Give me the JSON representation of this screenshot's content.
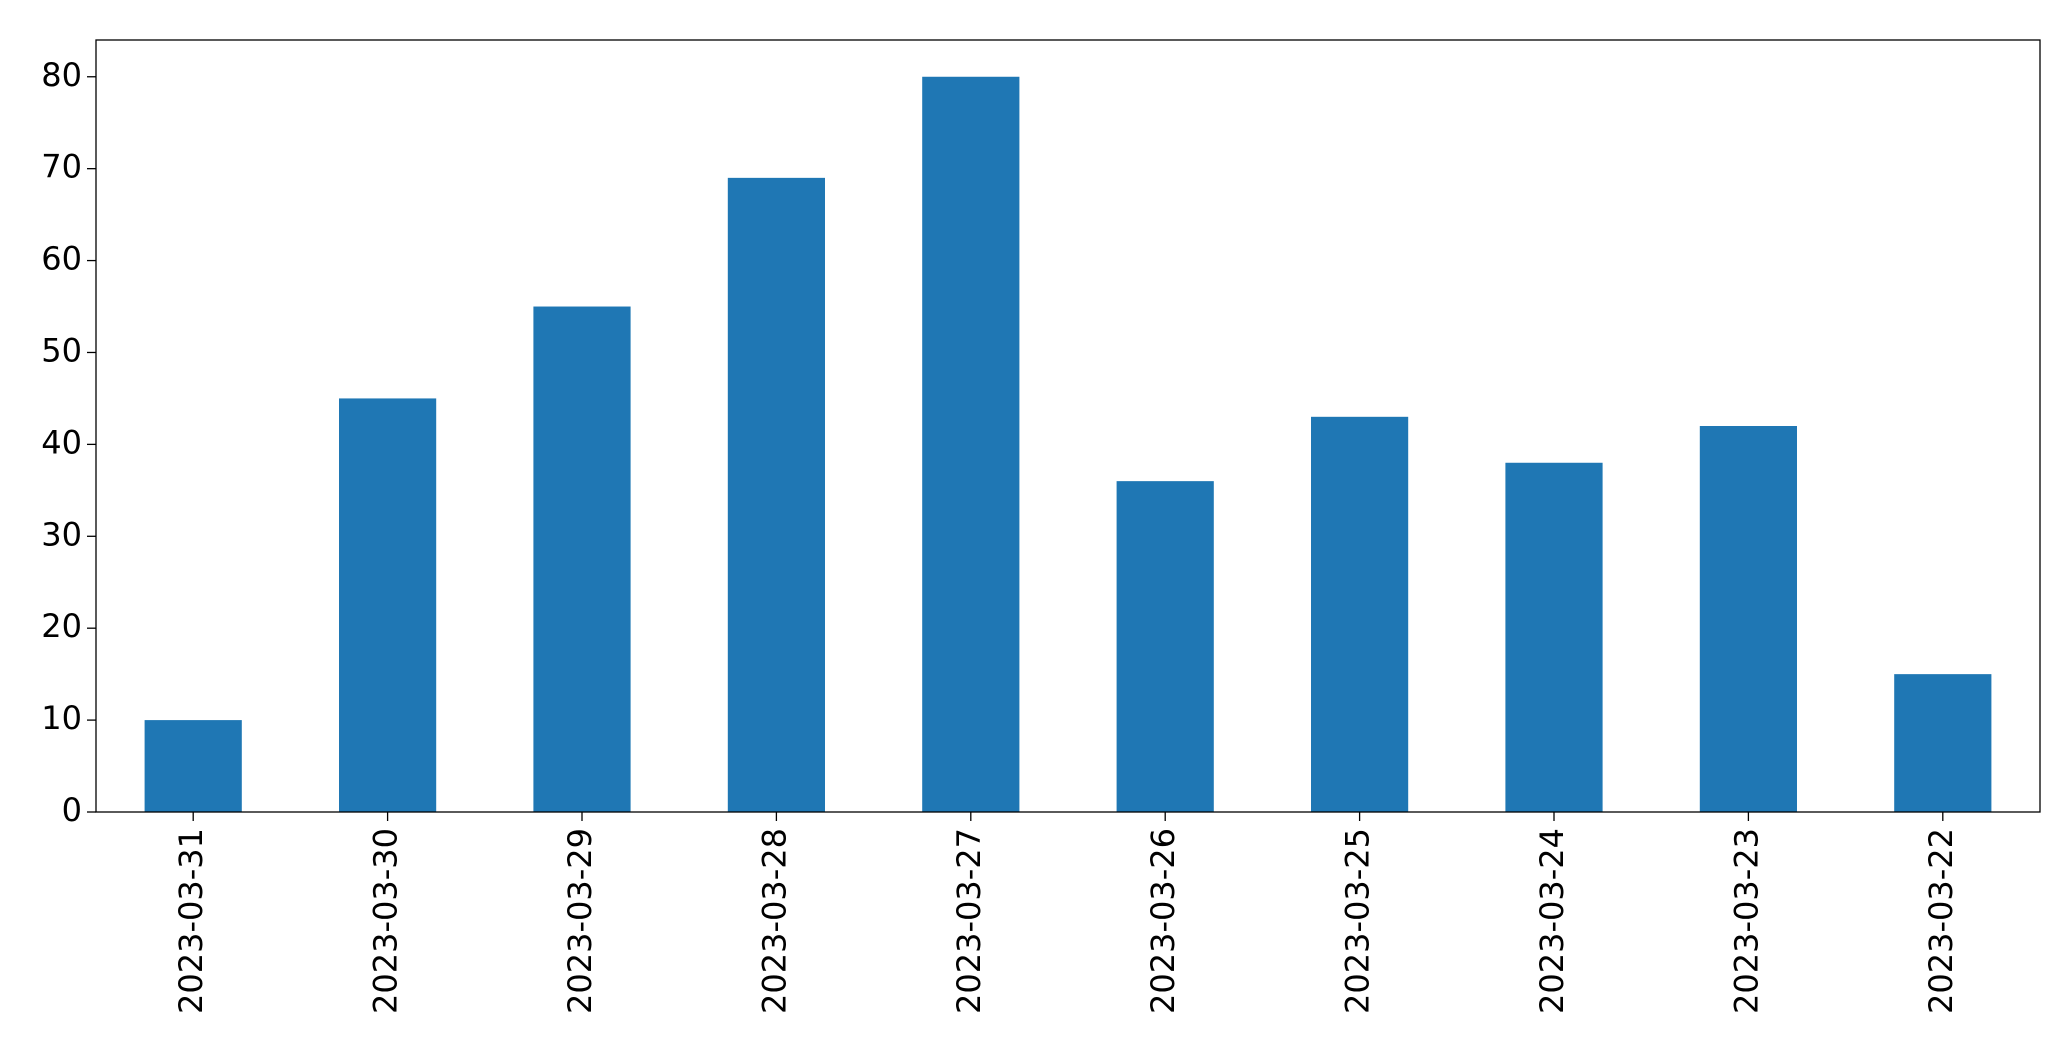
{
  "chart_data": {
    "type": "bar",
    "categories": [
      "2023-03-31",
      "2023-03-30",
      "2023-03-29",
      "2023-03-28",
      "2023-03-27",
      "2023-03-26",
      "2023-03-25",
      "2023-03-24",
      "2023-03-23",
      "2023-03-22"
    ],
    "values": [
      10,
      45,
      55,
      69,
      80,
      36,
      43,
      38,
      42,
      15
    ],
    "color": "#1f77b4",
    "ylim": [
      0,
      84
    ],
    "yticks": [
      0,
      10,
      20,
      30,
      40,
      50,
      60,
      70,
      80
    ],
    "grid": false
  }
}
